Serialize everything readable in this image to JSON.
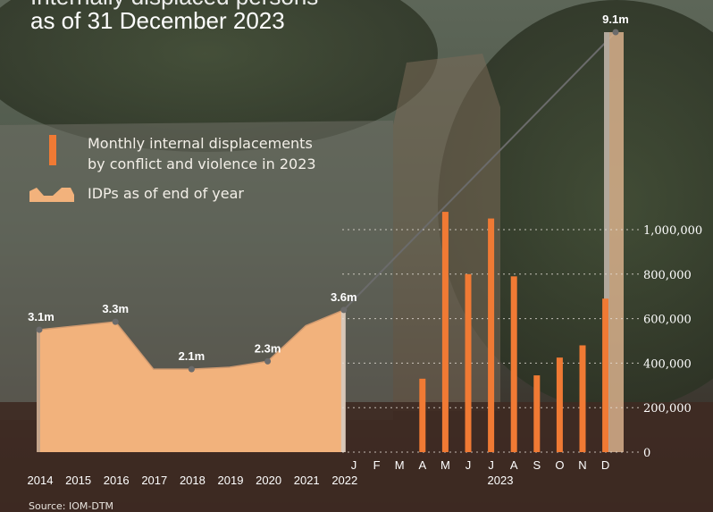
{
  "title": {
    "line1": "Internally displaced persons",
    "line2": "as of 31 December 2023"
  },
  "legend": {
    "bars": "Monthly internal displacements",
    "bars_line2": "by conflict and violence in 2023",
    "area": "IDPs as of end of year"
  },
  "source": "Source: IOM-DTM",
  "colors": {
    "area": "#f2b27c",
    "bars": "#f07a34",
    "line": "#6b6b6b",
    "text": "#ffffff"
  },
  "chart_data": [
    {
      "type": "area",
      "x": [
        "2014",
        "2015",
        "2016",
        "2017",
        "2018",
        "2019",
        "2020",
        "2021",
        "2022",
        "2023"
      ],
      "values": [
        3.1,
        3.2,
        3.3,
        2.1,
        2.1,
        2.15,
        2.3,
        3.2,
        3.6,
        9.1
      ],
      "unit": "m",
      "data_labels": [
        {
          "index": 0,
          "text": "3.1m"
        },
        {
          "index": 2,
          "text": "3.3m"
        },
        {
          "index": 4,
          "text": "2.1m"
        },
        {
          "index": 6,
          "text": "2.3m"
        },
        {
          "index": 8,
          "text": "3.6m"
        },
        {
          "index": 9,
          "text": "9.1m"
        }
      ]
    },
    {
      "type": "bar",
      "categories": [
        "J",
        "F",
        "M",
        "A",
        "M",
        "J",
        "J",
        "A",
        "S",
        "O",
        "N",
        "D"
      ],
      "xlabel": "2023",
      "values": [
        0,
        0,
        0,
        330000,
        1080000,
        800000,
        1050000,
        790000,
        345000,
        425000,
        480000,
        690000
      ],
      "ylim": [
        0,
        1000000
      ],
      "yticks": [
        "0",
        "200,000",
        "400,000",
        "600,000",
        "800,000",
        "1,000,000"
      ],
      "grid": true
    }
  ]
}
